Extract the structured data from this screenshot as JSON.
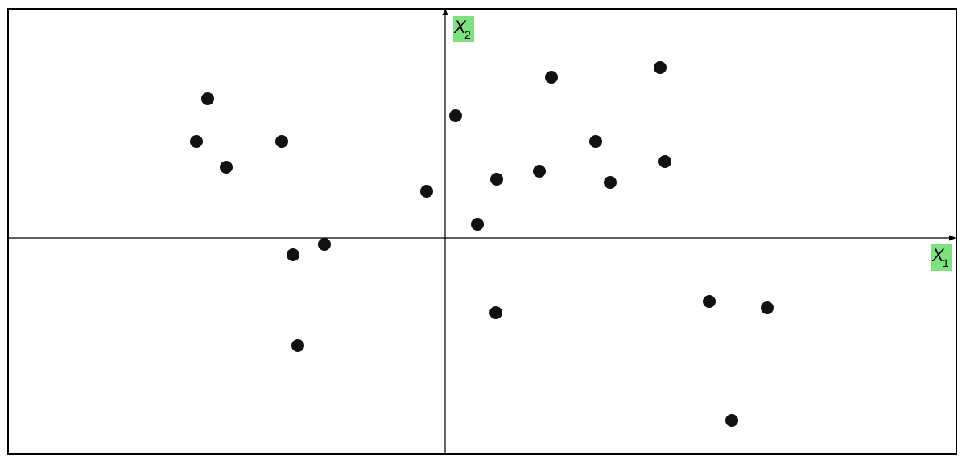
{
  "diagram": {
    "colors": {
      "frame": "#000000",
      "axes": "#000000",
      "points": "#111111",
      "label_highlight": "#7fe07f"
    },
    "x_axis_label": {
      "variable": "X",
      "subscript": "1"
    },
    "y_axis_label": {
      "variable": "X",
      "subscript": "2"
    }
  }
}
